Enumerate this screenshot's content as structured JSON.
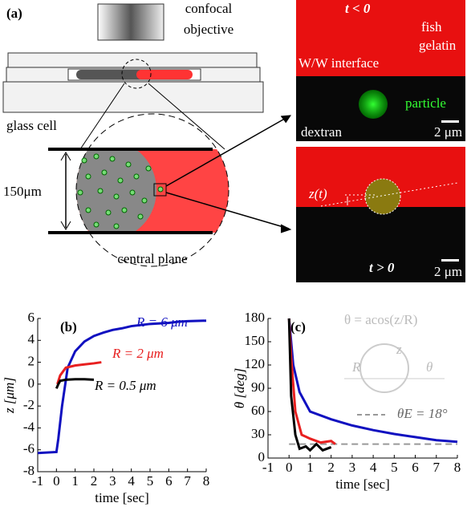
{
  "panel_a": {
    "label": "(a)",
    "objective": [
      "confocal",
      "objective"
    ],
    "cell_label": "glass cell",
    "thickness": "150μm",
    "plane": "central plane",
    "image_before": {
      "time": "t < 0",
      "phase_top": [
        "fish",
        "gelatin"
      ],
      "interface": "W/W interface",
      "particle": "particle",
      "phase_bottom": "dextran",
      "scale": "2 μm"
    },
    "image_after": {
      "height": "z(t)",
      "time": "t > 0",
      "scale": "2 μm"
    }
  },
  "chart_data": [
    {
      "type": "line",
      "label": "(b)",
      "x_label": "time [sec]",
      "y_label": "z [μm]",
      "xlim": [
        -1,
        8
      ],
      "ylim": [
        -8,
        6
      ],
      "xticks": [
        -1,
        0,
        1,
        2,
        3,
        4,
        5,
        6,
        7,
        8
      ],
      "yticks": [
        -8,
        -6,
        -4,
        -2,
        0,
        2,
        4,
        6
      ],
      "series": [
        {
          "name": "R = 6 μm",
          "color": "#1010c0",
          "x": [
            -1,
            0,
            0.1,
            0.3,
            0.6,
            1,
            1.5,
            2,
            2.5,
            3,
            3.5,
            4,
            5,
            6,
            6.5,
            7,
            8
          ],
          "values": [
            -6.3,
            -6.2,
            -5,
            -2,
            1.5,
            3,
            3.9,
            4.4,
            4.7,
            4.95,
            5.1,
            5.3,
            5.5,
            5.6,
            5.7,
            5.75,
            5.8
          ]
        },
        {
          "name": "R = 2 μm",
          "color": "#e82020",
          "x": [
            0.05,
            0.2,
            0.5,
            1,
            1.5,
            2,
            2.4
          ],
          "values": [
            0,
            0.8,
            1.5,
            1.7,
            1.8,
            1.9,
            2
          ]
        },
        {
          "name": "R = 0.5 μm",
          "color": "#000000",
          "x": [
            0,
            0.1,
            0.2,
            0.5,
            1,
            1.5,
            2
          ],
          "values": [
            -0.4,
            0,
            0.3,
            0.4,
            0.45,
            0.45,
            0.4
          ]
        }
      ]
    },
    {
      "type": "line",
      "label": "(c)",
      "x_label": "time [sec]",
      "y_label": "θ [deg]",
      "xlim": [
        -1,
        8
      ],
      "ylim": [
        0,
        180
      ],
      "xticks": [
        -1,
        0,
        1,
        2,
        3,
        4,
        5,
        6,
        7,
        8
      ],
      "yticks": [
        0,
        30,
        60,
        90,
        120,
        150,
        180
      ],
      "formula": "θ = acos(z/R)",
      "inset": [
        "R",
        "z",
        "θ"
      ],
      "reference": {
        "value": 18,
        "label": "θE = 18°",
        "color": "#999999"
      },
      "series": [
        {
          "color": "#1010c0",
          "x": [
            0,
            0.2,
            0.5,
            1,
            2,
            3,
            4,
            5,
            6,
            7,
            8
          ],
          "values": [
            180,
            120,
            85,
            60,
            50,
            42,
            36,
            31,
            27,
            23,
            21
          ]
        },
        {
          "color": "#e82020",
          "x": [
            0,
            0.1,
            0.3,
            0.6,
            1,
            1.5,
            2,
            2.2
          ],
          "values": [
            180,
            130,
            60,
            30,
            25,
            20,
            22,
            18
          ]
        },
        {
          "color": "#000000",
          "x": [
            0,
            0.1,
            0.3,
            0.5,
            0.8,
            1,
            1.3,
            1.6,
            2
          ],
          "values": [
            180,
            80,
            30,
            12,
            15,
            10,
            18,
            10,
            14
          ]
        }
      ]
    }
  ]
}
